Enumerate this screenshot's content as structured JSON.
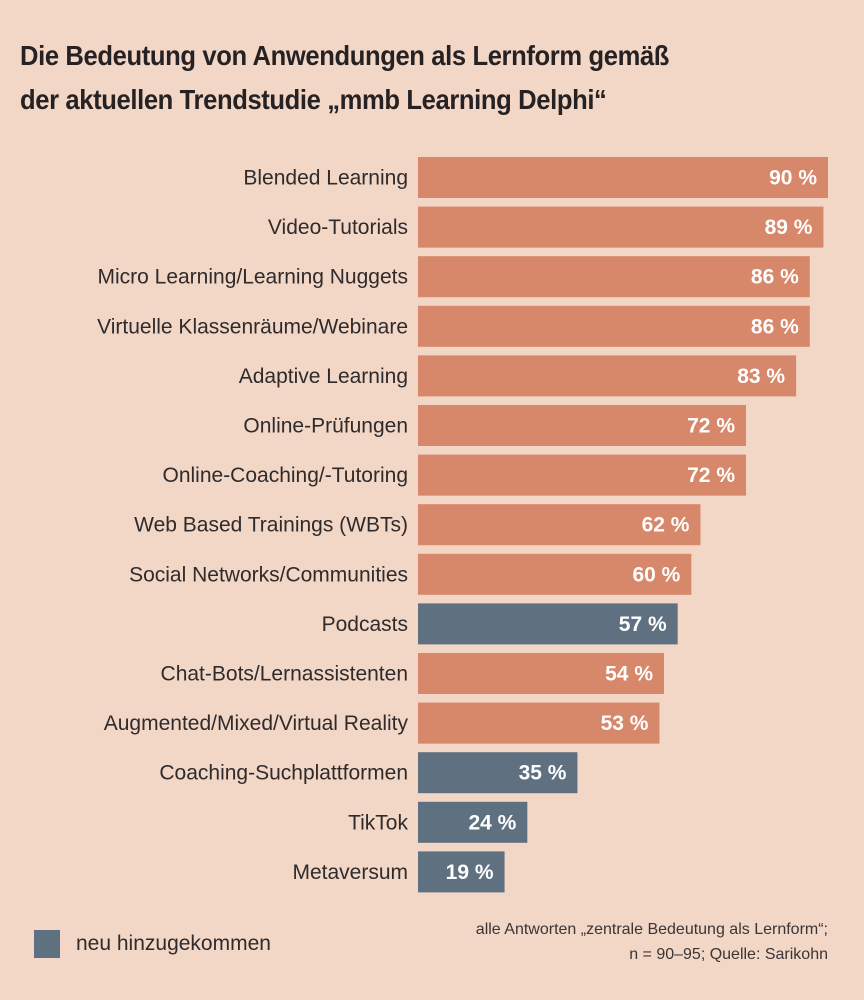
{
  "title_lines": [
    "Die Bedeutung von Anwendungen als Lernform gemäß",
    "der aktuellen Trendstudie „mmb Learning Delphi“"
  ],
  "legend": {
    "label": "neu hinzugekommen",
    "color": "#5f7180"
  },
  "source": {
    "line1": "alle Antworten „zentrale Bedeutung als Lernform“;",
    "line2": "n = 90–95; Quelle: Sarikohn"
  },
  "colors": {
    "background": "#f2d6c6",
    "existing": "#d7876a",
    "new": "#5f7180"
  },
  "chart_data": {
    "type": "bar",
    "orientation": "horizontal",
    "title": "Die Bedeutung von Anwendungen als Lernform gemäß der aktuellen Trendstudie „mmb Learning Delphi“",
    "xlabel": "",
    "ylabel": "",
    "unit": "%",
    "xlim": [
      0,
      100
    ],
    "grid": false,
    "legend_position": "bottom-left",
    "categories": [
      "Blended Learning",
      "Video-Tutorials",
      "Micro Learning/Learning Nuggets",
      "Virtuelle Klassenräume/Webinare",
      "Adaptive Learning",
      "Online-Prüfungen",
      "Online-Coaching/-Tutoring",
      "Web Based Trainings (WBTs)",
      "Social Networks/Communities",
      "Podcasts",
      "Chat-Bots/Lernassistenten",
      "Augmented/Mixed/Virtual Reality",
      "Coaching-Suchplattformen",
      "TikTok",
      "Metaversum"
    ],
    "values": [
      90,
      89,
      86,
      86,
      83,
      72,
      72,
      62,
      60,
      57,
      54,
      53,
      35,
      24,
      19
    ],
    "value_labels": [
      "90 %",
      "89 %",
      "86 %",
      "86 %",
      "83 %",
      "72 %",
      "72 %",
      "62 %",
      "60 %",
      "57 %",
      "54 %",
      "53 %",
      "35 %",
      "24 %",
      "19 %"
    ],
    "is_new": [
      false,
      false,
      false,
      false,
      false,
      false,
      false,
      false,
      false,
      true,
      false,
      false,
      true,
      true,
      true
    ]
  }
}
